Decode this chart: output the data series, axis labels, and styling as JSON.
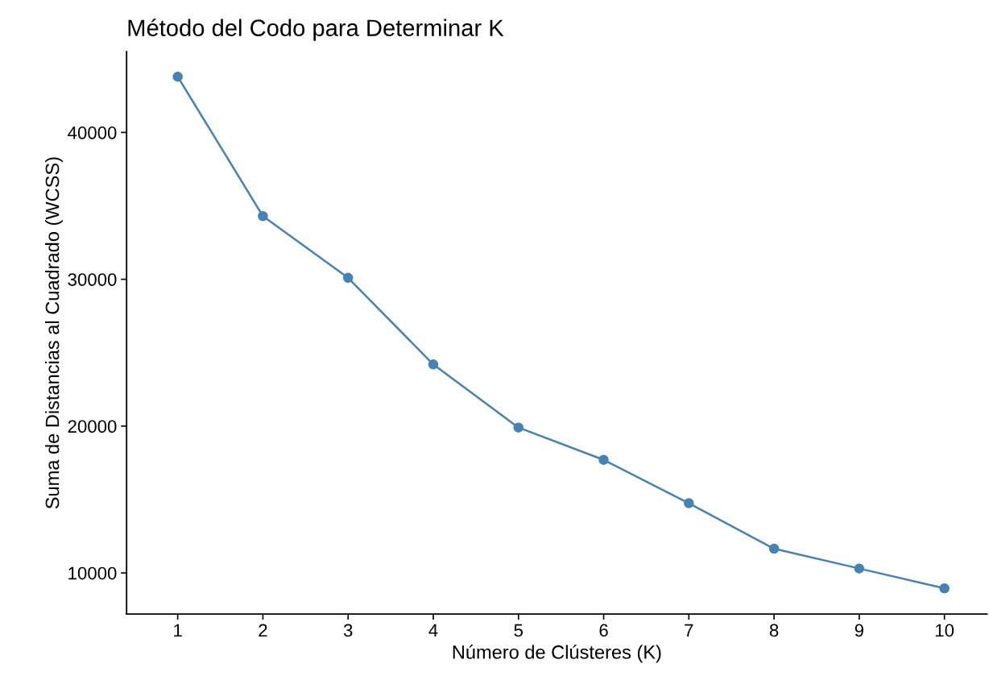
{
  "chart_data": {
    "type": "line",
    "title": "Método del Codo para Determinar K",
    "xlabel": "Número de Clústeres (K)",
    "ylabel": "Suma de Distancias al Cuadrado (WCSS)",
    "x": [
      1,
      2,
      3,
      4,
      5,
      6,
      7,
      8,
      9,
      10
    ],
    "series": [
      {
        "color": "#4682b4",
        "values": [
          43800,
          34300,
          30100,
          24200,
          19900,
          17700,
          14750,
          11650,
          10300,
          8950
        ]
      }
    ],
    "xlim": [
      0.4,
      10.5
    ],
    "xticks": [
      1,
      2,
      3,
      4,
      5,
      6,
      7,
      8,
      9,
      10
    ],
    "ylim": [
      7200,
      45500
    ],
    "yticks": [
      10000,
      20000,
      30000,
      40000
    ],
    "grid": false,
    "marker": "circle",
    "line_style": "solid"
  }
}
